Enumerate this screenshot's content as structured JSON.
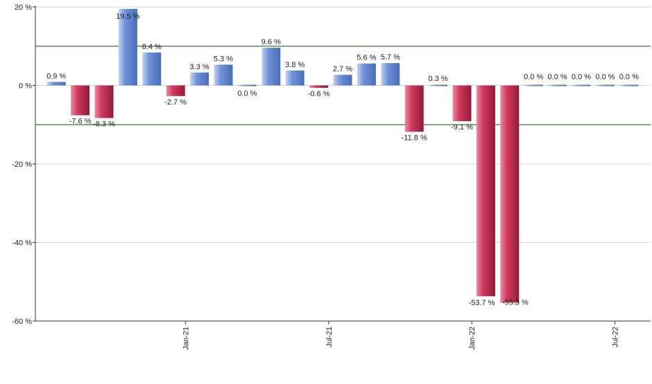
{
  "chart_data": {
    "type": "bar",
    "title": "",
    "xlabel": "",
    "ylabel": "",
    "ylim": [
      -60,
      20
    ],
    "yticks": [
      20,
      0,
      -20,
      -40,
      -60
    ],
    "ytick_labels": [
      "20 %",
      "0 %",
      "-20 %",
      "-40 %",
      "-60 %"
    ],
    "reference_lines": [
      10,
      -10
    ],
    "x_ticks": [
      {
        "label": "Jan-21",
        "after_index": 5
      },
      {
        "label": "Jul-21",
        "after_index": 11
      },
      {
        "label": "Jan-22",
        "after_index": 17
      },
      {
        "label": "Jul-22",
        "after_index": 23
      }
    ],
    "values": [
      0.9,
      -7.6,
      -8.3,
      19.5,
      8.4,
      -2.7,
      3.3,
      5.3,
      0.0,
      9.6,
      3.8,
      -0.6,
      2.7,
      5.6,
      5.7,
      -11.8,
      0.3,
      -9.1,
      -53.7,
      -55.3,
      0.0,
      0.0,
      0.0,
      0.0,
      0.0
    ],
    "data_labels": [
      "0.9 %",
      "-7.6 %",
      "-8.3 %",
      "19.5 %",
      "8.4 %",
      "-2.7 %",
      "3.3 %",
      "5.3 %",
      "0.0 %",
      "9.6 %",
      "3.8 %",
      "-0.6 %",
      "2.7 %",
      "5.6 %",
      "5.7 %",
      "-11.8 %",
      "0.3 %",
      "-9.1 %",
      "-53.7 %",
      "-55.3 %",
      "0.0 %",
      "0.0 %",
      "0.0 %",
      "0.0 %",
      "0.0 %"
    ],
    "grid": true,
    "colors": {
      "positive": "#6f93d8",
      "positive_light": "#c3d4f4",
      "positive_dark": "#4a6db8",
      "negative": "#d13a5e",
      "negative_light": "#f08aa2",
      "negative_dark": "#8f1c38",
      "grid": "#d3d3d3",
      "reference": "#2e7d2e",
      "axis": "#333333",
      "text": "#222222"
    }
  }
}
